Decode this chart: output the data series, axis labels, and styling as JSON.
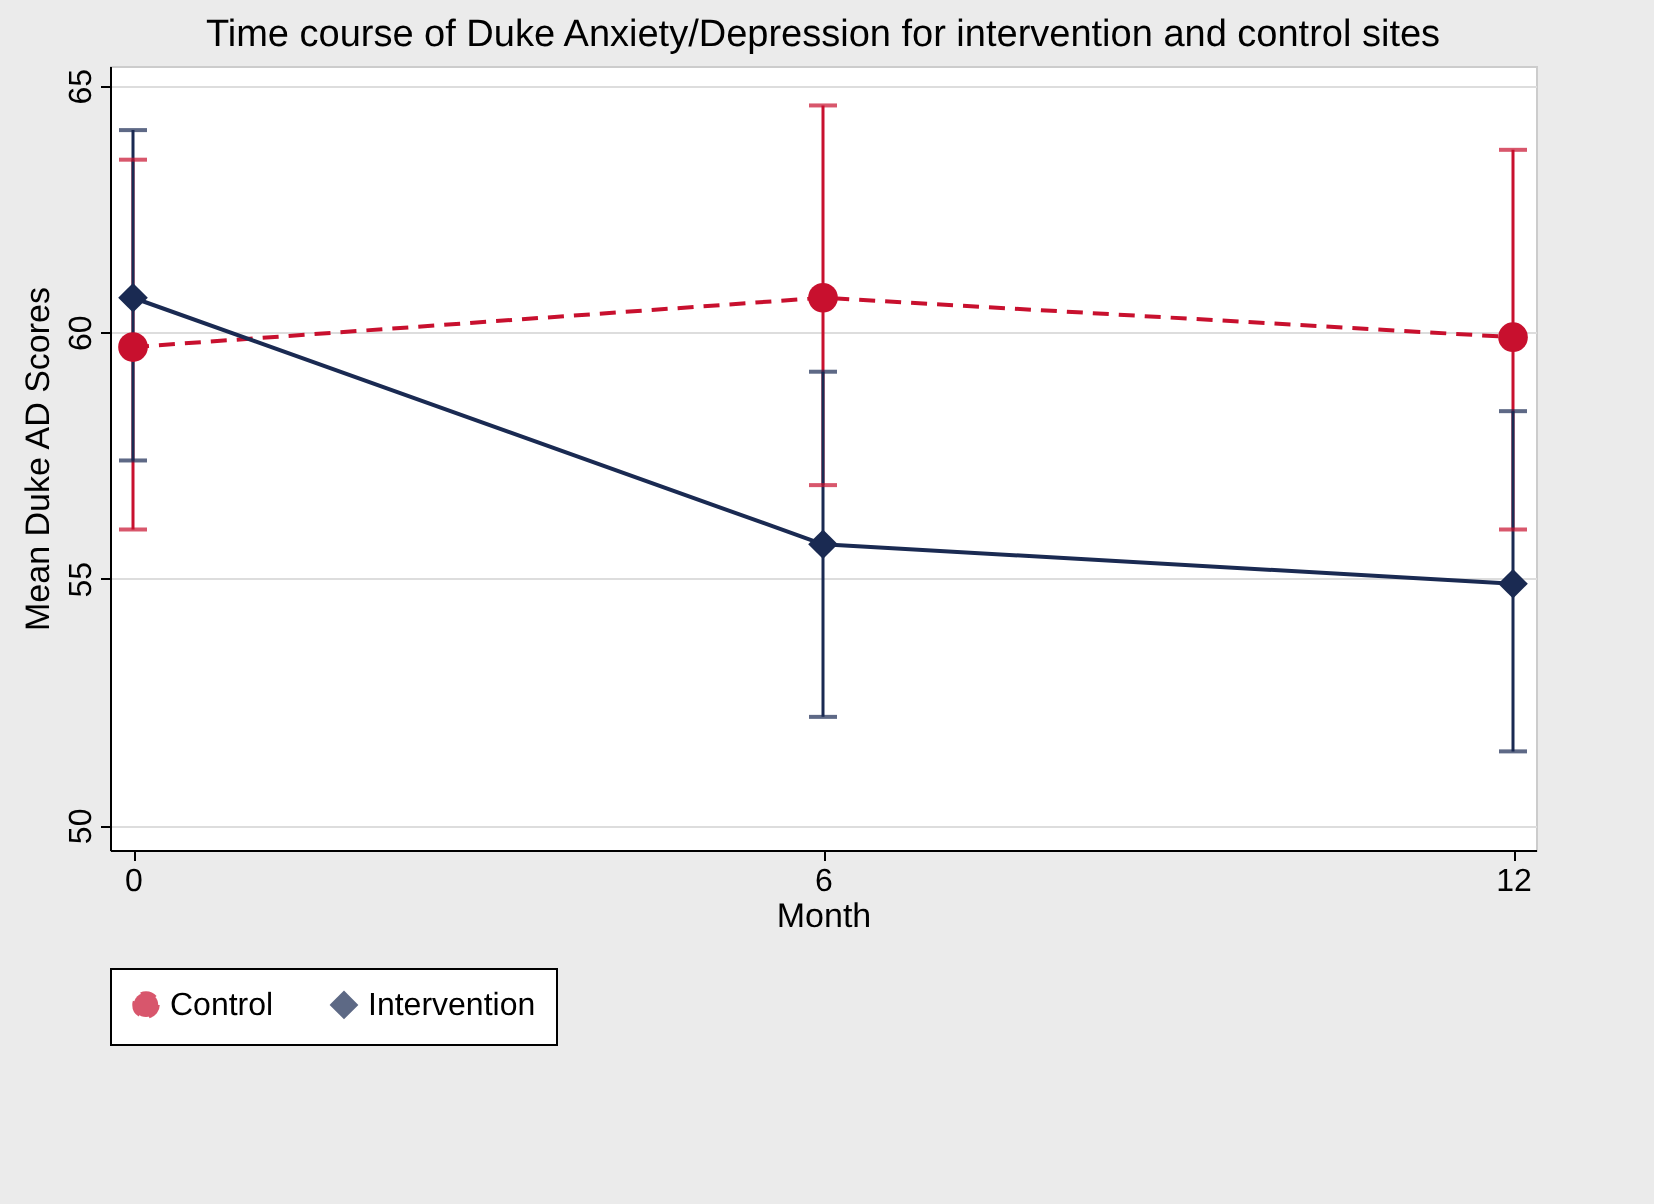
{
  "chart_data": {
    "type": "line",
    "title": "Time course of Duke Anxiety/Depression for intervention and control sites",
    "xlabel": "Month",
    "ylabel": "Mean Duke AD Scores",
    "x": [
      0,
      6,
      12
    ],
    "xlim": [
      -0.2,
      12.2
    ],
    "xticks": [
      0,
      6,
      12
    ],
    "ylim": [
      49.5,
      65.4
    ],
    "yticks": [
      50,
      55,
      60,
      65
    ],
    "grid": "y",
    "legend": "bottom",
    "series": [
      {
        "name": "Control",
        "color": "#c8102e",
        "marker": "circle",
        "line_style": "dashed",
        "values": [
          59.7,
          60.7,
          59.9
        ],
        "errors": [
          [
            56.0,
            63.5
          ],
          [
            56.9,
            64.6
          ],
          [
            56.0,
            63.7
          ]
        ]
      },
      {
        "name": "Intervention",
        "color": "#1a2a52",
        "marker": "diamond",
        "line_style": "solid",
        "values": [
          60.7,
          55.7,
          54.9
        ],
        "errors": [
          [
            57.4,
            64.1
          ],
          [
            52.2,
            59.2
          ],
          [
            51.5,
            58.4
          ]
        ]
      }
    ]
  }
}
